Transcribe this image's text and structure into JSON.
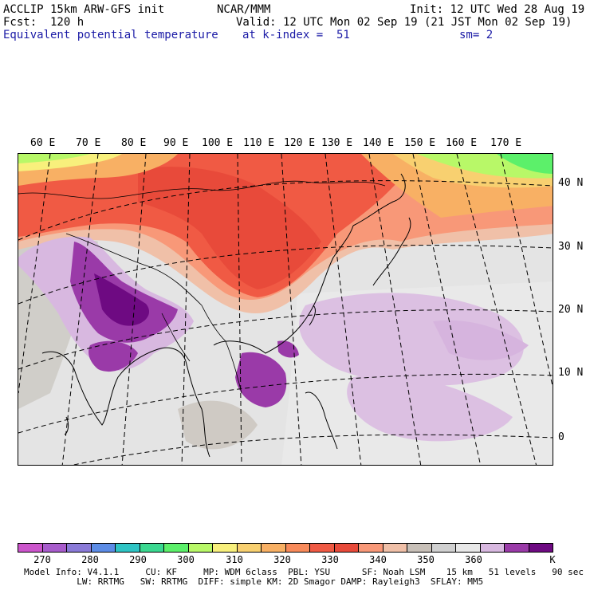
{
  "header": {
    "model": "ACCLIP 15km ARW-GFS init",
    "center": "NCAR/MMM",
    "init": "Init: 12 UTC Wed 28 Aug 19",
    "fcst": "Fcst:  120 h",
    "valid": "Valid: 12 UTC Mon 02 Sep 19 (21 JST Mon 02 Sep 19)",
    "field": "Equivalent potential temperature",
    "level": "at k-index =  51",
    "smooth": "sm= 2"
  },
  "map": {
    "lon_labels": [
      "60 E",
      "70 E",
      "80 E",
      "90 E",
      "100 E",
      "110 E",
      "120 E",
      "130 E",
      "140 E",
      "150 E",
      "160 E",
      "170 E"
    ],
    "lat_labels": [
      "40 N",
      "30 N",
      "20 N",
      "10 N",
      "0"
    ]
  },
  "colorbar": {
    "colors": [
      "#cc55cc",
      "#a85ccc",
      "#8a7ad8",
      "#5c8ce6",
      "#2ec4c4",
      "#3ad890",
      "#5cf06a",
      "#b8f868",
      "#f8f07c",
      "#f8d070",
      "#f8b064",
      "#f88a5a",
      "#f05a44",
      "#e84a3a",
      "#f89878",
      "#f0c0a8",
      "#c8c0b8",
      "#d0d0d0",
      "#e8e8e8",
      "#d8b8e0",
      "#9a3aa8",
      "#6e0a82"
    ],
    "ticks": [
      "270",
      "280",
      "290",
      "300",
      "310",
      "320",
      "330",
      "340",
      "350",
      "360",
      "K"
    ]
  },
  "footer": {
    "line1": "Model Info: V4.1.1     CU: KF     MP: WDM 6class  PBL: YSU      SF: Noah LSM    15 km   51 levels   90 sec",
    "line2": "          LW: RRTMG   SW: RRTMG  DIFF: simple KM: 2D Smagor DAMP: Rayleigh3  SFLAY: MM5"
  }
}
